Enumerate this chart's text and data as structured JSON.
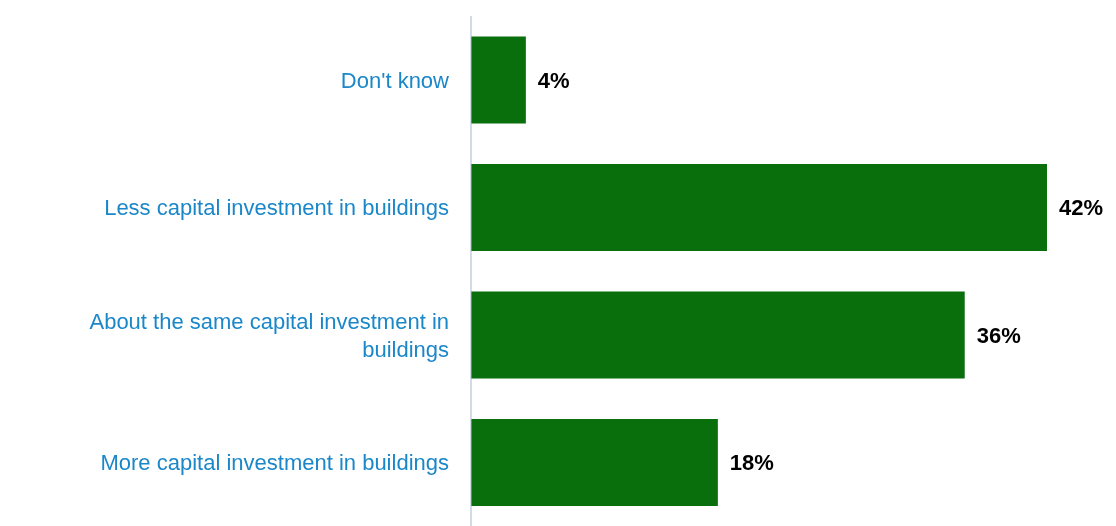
{
  "chart_data": {
    "type": "bar",
    "orientation": "horizontal",
    "categories": [
      "Don't know",
      "Less capital investment in buildings",
      "About the same capital investment in buildings",
      "More capital investment in buildings"
    ],
    "values": [
      4,
      42,
      36,
      18
    ],
    "color": "#086f0c",
    "value_labels": [
      "4%",
      "42%",
      "36%",
      "18%"
    ],
    "tick_labels": "y"
  }
}
